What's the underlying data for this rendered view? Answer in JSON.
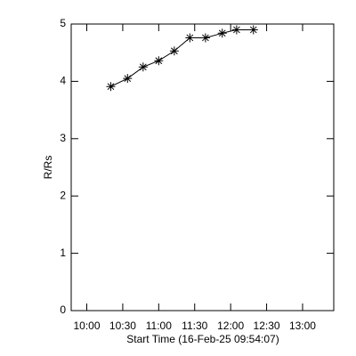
{
  "chart_data": {
    "type": "line",
    "xlabel": "Start Time (16-Feb-25 09:54:07)",
    "ylabel": "R/Rs",
    "x": [
      620,
      634,
      647,
      660,
      673,
      686,
      699,
      713,
      725,
      739
    ],
    "series": [
      {
        "color": "#000000",
        "marker": "asterisk",
        "values": [
          3.91,
          4.05,
          4.25,
          4.36,
          4.53,
          4.76,
          4.76,
          4.84,
          4.9,
          4.9
        ]
      }
    ],
    "xlim": [
      587,
      806
    ],
    "xticks": [
      {
        "value": 600,
        "label": "10:00"
      },
      {
        "value": 630,
        "label": "10:30"
      },
      {
        "value": 660,
        "label": "11:00"
      },
      {
        "value": 690,
        "label": "11:30"
      },
      {
        "value": 720,
        "label": "12:00"
      },
      {
        "value": 750,
        "label": "12:30"
      },
      {
        "value": 780,
        "label": "13:00"
      }
    ],
    "ylim": [
      0,
      5
    ],
    "yticks": [
      0,
      1,
      2,
      3,
      4,
      5
    ]
  }
}
